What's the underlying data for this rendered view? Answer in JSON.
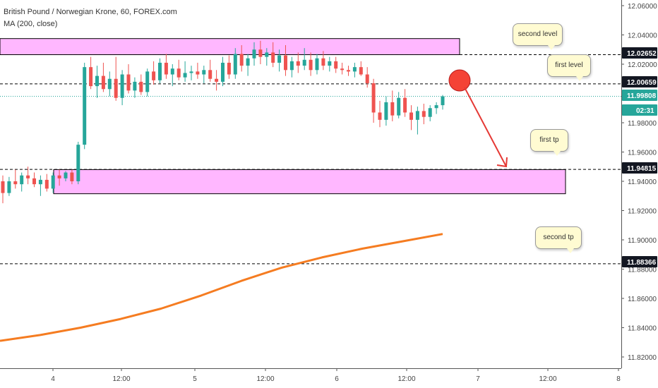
{
  "legend": {
    "title": "British Pound / Norwegian Krone, 60, FOREX.com",
    "indicator": "MA (200, close)"
  },
  "colors": {
    "bull": "#26a69a",
    "bear": "#ef5350",
    "ma": "#f57c21",
    "zone": "#ff99ff",
    "arrow": "#e53935",
    "circle": "#f44336",
    "current_price": "#26a69a"
  },
  "price_axis": {
    "ticks": [
      "12.06000",
      "12.04000",
      "12.02000",
      "12.00000",
      "11.98000",
      "11.96000",
      "11.94000",
      "11.92000",
      "11.90000",
      "11.88000",
      "11.86000",
      "11.84000",
      "11.82000"
    ],
    "level_labels": [
      {
        "value": "12.02652",
        "style": "dark"
      },
      {
        "value": "12.00659",
        "style": "dark"
      },
      {
        "value": "11.99808",
        "style": "green"
      },
      {
        "value": "02:31",
        "style": "green"
      },
      {
        "value": "11.94815",
        "style": "dark"
      },
      {
        "value": "11.88366",
        "style": "dark"
      }
    ]
  },
  "time_axis": {
    "ticks": [
      "4",
      "12:00",
      "5",
      "12:00",
      "6",
      "12:00",
      "7",
      "12:00",
      "8"
    ]
  },
  "annotations": {
    "second_level": "second level",
    "first_level": "first level",
    "first_tp": "first tp",
    "second_tp": "second tp"
  },
  "chart_data": {
    "type": "candlestick",
    "title": "British Pound / Norwegian Krone, 60, FOREX.com",
    "symbol": "GBPNOK",
    "timeframe": "60",
    "ylim": [
      11.815,
      12.065
    ],
    "x_labels": [
      "4",
      "12:00",
      "5",
      "12:00",
      "6",
      "12:00",
      "7",
      "12:00",
      "8"
    ],
    "levels": [
      {
        "name": "second level",
        "value": 12.02652
      },
      {
        "name": "first level",
        "value": 12.00659
      },
      {
        "name": "current price",
        "value": 11.99808
      },
      {
        "name": "first tp",
        "value": 11.94815
      },
      {
        "name": "second tp",
        "value": 11.88366
      }
    ],
    "zones": [
      {
        "from": 12.0265,
        "to": 12.0375
      },
      {
        "from": 11.9315,
        "to": 11.948
      }
    ],
    "ma_200": [
      {
        "x": 0,
        "y": 11.831
      },
      {
        "x": 5,
        "y": 11.835
      },
      {
        "x": 10,
        "y": 11.84
      },
      {
        "x": 15,
        "y": 11.846
      },
      {
        "x": 20,
        "y": 11.853
      },
      {
        "x": 25,
        "y": 11.862
      },
      {
        "x": 30,
        "y": 11.872
      },
      {
        "x": 35,
        "y": 11.881
      },
      {
        "x": 40,
        "y": 11.888
      },
      {
        "x": 45,
        "y": 11.894
      },
      {
        "x": 50,
        "y": 11.899
      },
      {
        "x": 55,
        "y": 11.904
      }
    ],
    "candles": [
      {
        "o": 11.94,
        "h": 11.944,
        "l": 11.925,
        "c": 11.932
      },
      {
        "o": 11.932,
        "h": 11.943,
        "l": 11.93,
        "c": 11.94
      },
      {
        "o": 11.94,
        "h": 11.948,
        "l": 11.935,
        "c": 11.938
      },
      {
        "o": 11.938,
        "h": 11.946,
        "l": 11.933,
        "c": 11.944
      },
      {
        "o": 11.944,
        "h": 11.95,
        "l": 11.938,
        "c": 11.942
      },
      {
        "o": 11.942,
        "h": 11.946,
        "l": 11.936,
        "c": 11.938
      },
      {
        "o": 11.938,
        "h": 11.944,
        "l": 11.93,
        "c": 11.941
      },
      {
        "o": 11.941,
        "h": 11.945,
        "l": 11.933,
        "c": 11.935
      },
      {
        "o": 11.935,
        "h": 11.946,
        "l": 11.932,
        "c": 11.944
      },
      {
        "o": 11.944,
        "h": 11.948,
        "l": 11.937,
        "c": 11.942
      },
      {
        "o": 11.942,
        "h": 11.947,
        "l": 11.94,
        "c": 11.946
      },
      {
        "o": 11.946,
        "h": 11.948,
        "l": 11.938,
        "c": 11.94
      },
      {
        "o": 11.94,
        "h": 11.967,
        "l": 11.938,
        "c": 11.965
      },
      {
        "o": 11.965,
        "h": 12.021,
        "l": 11.962,
        "c": 12.018
      },
      {
        "o": 12.018,
        "h": 12.025,
        "l": 12.003,
        "c": 12.005
      },
      {
        "o": 12.005,
        "h": 12.019,
        "l": 11.997,
        "c": 12.012
      },
      {
        "o": 12.012,
        "h": 12.021,
        "l": 12.001,
        "c": 12.003
      },
      {
        "o": 12.003,
        "h": 12.015,
        "l": 11.998,
        "c": 12.01
      },
      {
        "o": 12.01,
        "h": 12.025,
        "l": 11.995,
        "c": 11.997
      },
      {
        "o": 11.997,
        "h": 12.016,
        "l": 11.992,
        "c": 12.013
      },
      {
        "o": 12.013,
        "h": 12.02,
        "l": 12.0,
        "c": 12.002
      },
      {
        "o": 12.002,
        "h": 12.011,
        "l": 11.997,
        "c": 12.008
      },
      {
        "o": 12.008,
        "h": 12.013,
        "l": 11.999,
        "c": 12.001
      },
      {
        "o": 12.001,
        "h": 12.017,
        "l": 11.998,
        "c": 12.015
      },
      {
        "o": 12.015,
        "h": 12.022,
        "l": 12.006,
        "c": 12.009
      },
      {
        "o": 12.009,
        "h": 12.024,
        "l": 12.007,
        "c": 12.021
      },
      {
        "o": 12.021,
        "h": 12.027,
        "l": 12.01,
        "c": 12.013
      },
      {
        "o": 12.013,
        "h": 12.02,
        "l": 12.005,
        "c": 12.017
      },
      {
        "o": 12.017,
        "h": 12.023,
        "l": 12.009,
        "c": 12.011
      },
      {
        "o": 12.011,
        "h": 12.022,
        "l": 12.008,
        "c": 12.014
      },
      {
        "o": 12.014,
        "h": 12.019,
        "l": 12.009,
        "c": 12.015
      },
      {
        "o": 12.015,
        "h": 12.021,
        "l": 12.01,
        "c": 12.013
      },
      {
        "o": 12.013,
        "h": 12.019,
        "l": 12.007,
        "c": 12.016
      },
      {
        "o": 12.016,
        "h": 12.023,
        "l": 12.008,
        "c": 12.01
      },
      {
        "o": 12.01,
        "h": 12.016,
        "l": 12.002,
        "c": 12.008
      },
      {
        "o": 12.008,
        "h": 12.025,
        "l": 12.005,
        "c": 12.021
      },
      {
        "o": 12.021,
        "h": 12.026,
        "l": 12.01,
        "c": 12.013
      },
      {
        "o": 12.013,
        "h": 12.031,
        "l": 12.01,
        "c": 12.027
      },
      {
        "o": 12.027,
        "h": 12.033,
        "l": 12.015,
        "c": 12.019
      },
      {
        "o": 12.019,
        "h": 12.027,
        "l": 12.012,
        "c": 12.024
      },
      {
        "o": 12.024,
        "h": 12.035,
        "l": 12.019,
        "c": 12.03
      },
      {
        "o": 12.03,
        "h": 12.036,
        "l": 12.02,
        "c": 12.025
      },
      {
        "o": 12.025,
        "h": 12.031,
        "l": 12.019,
        "c": 12.028
      },
      {
        "o": 12.028,
        "h": 12.035,
        "l": 12.018,
        "c": 12.021
      },
      {
        "o": 12.021,
        "h": 12.03,
        "l": 12.015,
        "c": 12.026
      },
      {
        "o": 12.026,
        "h": 12.033,
        "l": 12.012,
        "c": 12.016
      },
      {
        "o": 12.016,
        "h": 12.025,
        "l": 12.011,
        "c": 12.022
      },
      {
        "o": 12.022,
        "h": 12.028,
        "l": 12.014,
        "c": 12.019
      },
      {
        "o": 12.019,
        "h": 12.031,
        "l": 12.016,
        "c": 12.023
      },
      {
        "o": 12.023,
        "h": 12.028,
        "l": 12.012,
        "c": 12.016
      },
      {
        "o": 12.016,
        "h": 12.027,
        "l": 12.013,
        "c": 12.024
      },
      {
        "o": 12.024,
        "h": 12.029,
        "l": 12.016,
        "c": 12.019
      },
      {
        "o": 12.019,
        "h": 12.025,
        "l": 12.015,
        "c": 12.022
      },
      {
        "o": 12.022,
        "h": 12.025,
        "l": 12.014,
        "c": 12.017
      },
      {
        "o": 12.017,
        "h": 12.021,
        "l": 12.013,
        "c": 12.016
      },
      {
        "o": 12.016,
        "h": 12.019,
        "l": 12.012,
        "c": 12.015
      },
      {
        "o": 12.015,
        "h": 12.021,
        "l": 12.011,
        "c": 12.018
      },
      {
        "o": 12.018,
        "h": 12.022,
        "l": 12.012,
        "c": 12.013
      },
      {
        "o": 12.013,
        "h": 12.018,
        "l": 12.004,
        "c": 12.007
      },
      {
        "o": 12.007,
        "h": 12.01,
        "l": 11.98,
        "c": 11.987
      },
      {
        "o": 11.987,
        "h": 11.995,
        "l": 11.977,
        "c": 11.982
      },
      {
        "o": 11.982,
        "h": 11.998,
        "l": 11.978,
        "c": 11.994
      },
      {
        "o": 11.994,
        "h": 12.002,
        "l": 11.981,
        "c": 11.985
      },
      {
        "o": 11.985,
        "h": 12.001,
        "l": 11.983,
        "c": 11.997
      },
      {
        "o": 11.997,
        "h": 12.003,
        "l": 11.984,
        "c": 11.987
      },
      {
        "o": 11.987,
        "h": 11.992,
        "l": 11.975,
        "c": 11.982
      },
      {
        "o": 11.982,
        "h": 11.991,
        "l": 11.972,
        "c": 11.988
      },
      {
        "o": 11.988,
        "h": 11.993,
        "l": 11.979,
        "c": 11.984
      },
      {
        "o": 11.984,
        "h": 11.992,
        "l": 11.981,
        "c": 11.99
      },
      {
        "o": 11.99,
        "h": 11.994,
        "l": 11.986,
        "c": 11.992
      },
      {
        "o": 11.992,
        "h": 11.999,
        "l": 11.989,
        "c": 11.998
      }
    ]
  }
}
